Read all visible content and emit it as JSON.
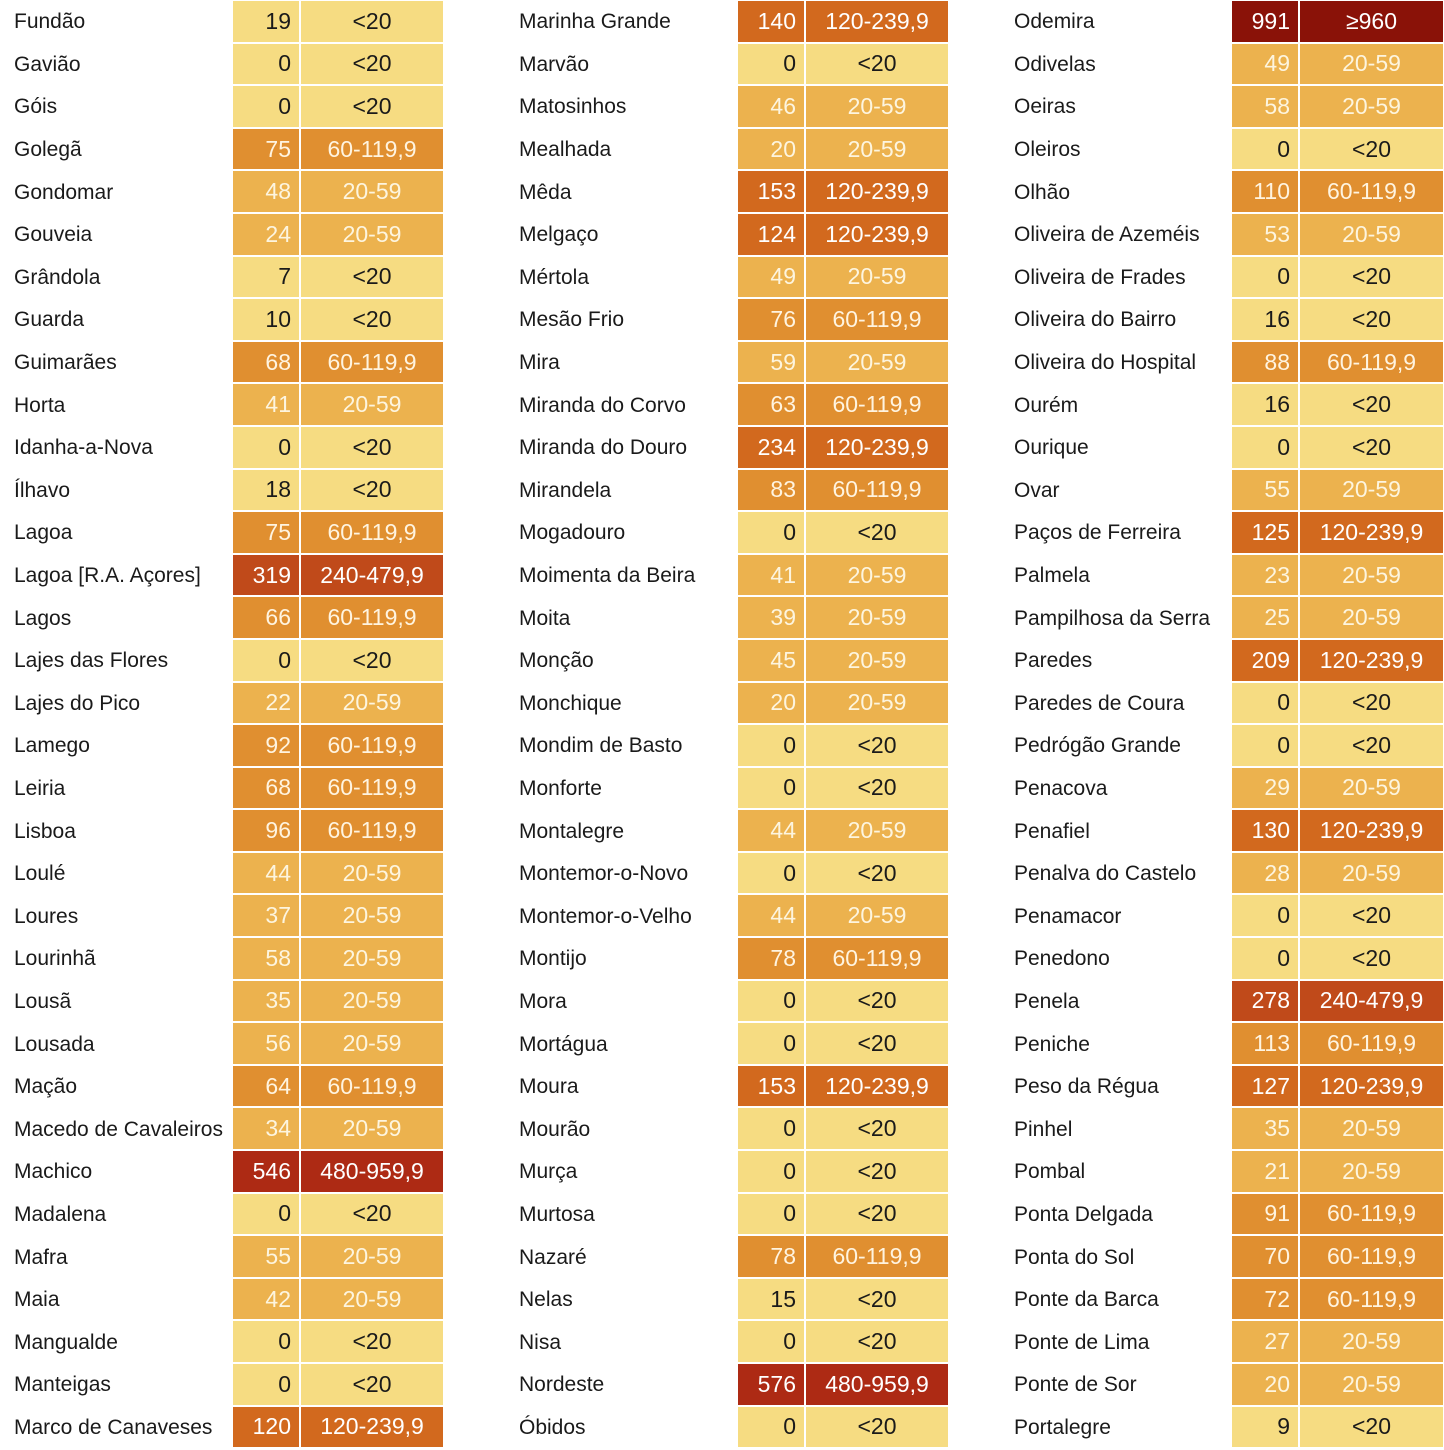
{
  "columns": [
    {
      "rows": [
        {
          "name": "Fundão",
          "value": "19",
          "range": "<20",
          "level": 0
        },
        {
          "name": "Gavião",
          "value": "0",
          "range": "<20",
          "level": 0
        },
        {
          "name": "Góis",
          "value": "0",
          "range": "<20",
          "level": 0
        },
        {
          "name": "Golegã",
          "value": "75",
          "range": "60-119,9",
          "level": 2
        },
        {
          "name": "Gondomar",
          "value": "48",
          "range": "20-59",
          "level": 1
        },
        {
          "name": "Gouveia",
          "value": "24",
          "range": "20-59",
          "level": 1
        },
        {
          "name": "Grândola",
          "value": "7",
          "range": "<20",
          "level": 0
        },
        {
          "name": "Guarda",
          "value": "10",
          "range": "<20",
          "level": 0
        },
        {
          "name": "Guimarães",
          "value": "68",
          "range": "60-119,9",
          "level": 2
        },
        {
          "name": "Horta",
          "value": "41",
          "range": "20-59",
          "level": 1
        },
        {
          "name": "Idanha-a-Nova",
          "value": "0",
          "range": "<20",
          "level": 0
        },
        {
          "name": "Ílhavo",
          "value": "18",
          "range": "<20",
          "level": 0
        },
        {
          "name": "Lagoa",
          "value": "75",
          "range": "60-119,9",
          "level": 2
        },
        {
          "name": "Lagoa [R.A. Açores]",
          "value": "319",
          "range": "240-479,9",
          "level": 4
        },
        {
          "name": "Lagos",
          "value": "66",
          "range": "60-119,9",
          "level": 2
        },
        {
          "name": "Lajes das Flores",
          "value": "0",
          "range": "<20",
          "level": 0
        },
        {
          "name": "Lajes do Pico",
          "value": "22",
          "range": "20-59",
          "level": 1
        },
        {
          "name": "Lamego",
          "value": "92",
          "range": "60-119,9",
          "level": 2
        },
        {
          "name": "Leiria",
          "value": "68",
          "range": "60-119,9",
          "level": 2
        },
        {
          "name": "Lisboa",
          "value": "96",
          "range": "60-119,9",
          "level": 2
        },
        {
          "name": "Loulé",
          "value": "44",
          "range": "20-59",
          "level": 1
        },
        {
          "name": "Loures",
          "value": "37",
          "range": "20-59",
          "level": 1
        },
        {
          "name": "Lourinhã",
          "value": "58",
          "range": "20-59",
          "level": 1
        },
        {
          "name": "Lousã",
          "value": "35",
          "range": "20-59",
          "level": 1
        },
        {
          "name": "Lousada",
          "value": "56",
          "range": "20-59",
          "level": 1
        },
        {
          "name": "Mação",
          "value": "64",
          "range": "60-119,9",
          "level": 2
        },
        {
          "name": "Macedo de Cavaleiros",
          "value": "34",
          "range": "20-59",
          "level": 1
        },
        {
          "name": "Machico",
          "value": "546",
          "range": "480-959,9",
          "level": 5
        },
        {
          "name": "Madalena",
          "value": "0",
          "range": "<20",
          "level": 0
        },
        {
          "name": "Mafra",
          "value": "55",
          "range": "20-59",
          "level": 1
        },
        {
          "name": "Maia",
          "value": "42",
          "range": "20-59",
          "level": 1
        },
        {
          "name": "Mangualde",
          "value": "0",
          "range": "<20",
          "level": 0
        },
        {
          "name": "Manteigas",
          "value": "0",
          "range": "<20",
          "level": 0
        },
        {
          "name": "Marco de Canaveses",
          "value": "120",
          "range": "120-239,9",
          "level": 3
        }
      ]
    },
    {
      "rows": [
        {
          "name": "Marinha Grande",
          "value": "140",
          "range": "120-239,9",
          "level": 3
        },
        {
          "name": "Marvão",
          "value": "0",
          "range": "<20",
          "level": 0
        },
        {
          "name": "Matosinhos",
          "value": "46",
          "range": "20-59",
          "level": 1
        },
        {
          "name": "Mealhada",
          "value": "20",
          "range": "20-59",
          "level": 1
        },
        {
          "name": "Mêda",
          "value": "153",
          "range": "120-239,9",
          "level": 3
        },
        {
          "name": "Melgaço",
          "value": "124",
          "range": "120-239,9",
          "level": 3
        },
        {
          "name": "Mértola",
          "value": "49",
          "range": "20-59",
          "level": 1
        },
        {
          "name": "Mesão Frio",
          "value": "76",
          "range": "60-119,9",
          "level": 2
        },
        {
          "name": "Mira",
          "value": "59",
          "range": "20-59",
          "level": 1
        },
        {
          "name": "Miranda do Corvo",
          "value": "63",
          "range": "60-119,9",
          "level": 2
        },
        {
          "name": "Miranda do Douro",
          "value": "234",
          "range": "120-239,9",
          "level": 3
        },
        {
          "name": "Mirandela",
          "value": "83",
          "range": "60-119,9",
          "level": 2
        },
        {
          "name": "Mogadouro",
          "value": "0",
          "range": "<20",
          "level": 0
        },
        {
          "name": "Moimenta da Beira",
          "value": "41",
          "range": "20-59",
          "level": 1
        },
        {
          "name": "Moita",
          "value": "39",
          "range": "20-59",
          "level": 1
        },
        {
          "name": "Monção",
          "value": "45",
          "range": "20-59",
          "level": 1
        },
        {
          "name": "Monchique",
          "value": "20",
          "range": "20-59",
          "level": 1
        },
        {
          "name": "Mondim de Basto",
          "value": "0",
          "range": "<20",
          "level": 0
        },
        {
          "name": "Monforte",
          "value": "0",
          "range": "<20",
          "level": 0
        },
        {
          "name": "Montalegre",
          "value": "44",
          "range": "20-59",
          "level": 1
        },
        {
          "name": "Montemor-o-Novo",
          "value": "0",
          "range": "<20",
          "level": 0
        },
        {
          "name": "Montemor-o-Velho",
          "value": "44",
          "range": "20-59",
          "level": 1
        },
        {
          "name": "Montijo",
          "value": "78",
          "range": "60-119,9",
          "level": 2
        },
        {
          "name": "Mora",
          "value": "0",
          "range": "<20",
          "level": 0
        },
        {
          "name": "Mortágua",
          "value": "0",
          "range": "<20",
          "level": 0
        },
        {
          "name": "Moura",
          "value": "153",
          "range": "120-239,9",
          "level": 3
        },
        {
          "name": "Mourão",
          "value": "0",
          "range": "<20",
          "level": 0
        },
        {
          "name": "Murça",
          "value": "0",
          "range": "<20",
          "level": 0
        },
        {
          "name": "Murtosa",
          "value": "0",
          "range": "<20",
          "level": 0
        },
        {
          "name": "Nazaré",
          "value": "78",
          "range": "60-119,9",
          "level": 2
        },
        {
          "name": "Nelas",
          "value": "15",
          "range": "<20",
          "level": 0
        },
        {
          "name": "Nisa",
          "value": "0",
          "range": "<20",
          "level": 0
        },
        {
          "name": "Nordeste",
          "value": "576",
          "range": "480-959,9",
          "level": 5
        },
        {
          "name": "Óbidos",
          "value": "0",
          "range": "<20",
          "level": 0
        }
      ]
    },
    {
      "rows": [
        {
          "name": "Odemira",
          "value": "991",
          "range": "≥960",
          "level": 6
        },
        {
          "name": "Odivelas",
          "value": "49",
          "range": "20-59",
          "level": 1
        },
        {
          "name": "Oeiras",
          "value": "58",
          "range": "20-59",
          "level": 1
        },
        {
          "name": "Oleiros",
          "value": "0",
          "range": "<20",
          "level": 0
        },
        {
          "name": "Olhão",
          "value": "110",
          "range": "60-119,9",
          "level": 2
        },
        {
          "name": "Oliveira de Azeméis",
          "value": "53",
          "range": "20-59",
          "level": 1
        },
        {
          "name": "Oliveira de Frades",
          "value": "0",
          "range": "<20",
          "level": 0
        },
        {
          "name": "Oliveira do Bairro",
          "value": "16",
          "range": "<20",
          "level": 0
        },
        {
          "name": "Oliveira do Hospital",
          "value": "88",
          "range": "60-119,9",
          "level": 2
        },
        {
          "name": "Ourém",
          "value": "16",
          "range": "<20",
          "level": 0
        },
        {
          "name": "Ourique",
          "value": "0",
          "range": "<20",
          "level": 0
        },
        {
          "name": "Ovar",
          "value": "55",
          "range": "20-59",
          "level": 1
        },
        {
          "name": "Paços de Ferreira",
          "value": "125",
          "range": "120-239,9",
          "level": 3
        },
        {
          "name": "Palmela",
          "value": "23",
          "range": "20-59",
          "level": 1
        },
        {
          "name": "Pampilhosa da Serra",
          "value": "25",
          "range": "20-59",
          "level": 1
        },
        {
          "name": "Paredes",
          "value": "209",
          "range": "120-239,9",
          "level": 3
        },
        {
          "name": "Paredes de Coura",
          "value": "0",
          "range": "<20",
          "level": 0
        },
        {
          "name": "Pedrógão Grande",
          "value": "0",
          "range": "<20",
          "level": 0
        },
        {
          "name": "Penacova",
          "value": "29",
          "range": "20-59",
          "level": 1
        },
        {
          "name": "Penafiel",
          "value": "130",
          "range": "120-239,9",
          "level": 3
        },
        {
          "name": "Penalva do Castelo",
          "value": "28",
          "range": "20-59",
          "level": 1
        },
        {
          "name": "Penamacor",
          "value": "0",
          "range": "<20",
          "level": 0
        },
        {
          "name": "Penedono",
          "value": "0",
          "range": "<20",
          "level": 0
        },
        {
          "name": "Penela",
          "value": "278",
          "range": "240-479,9",
          "level": 4
        },
        {
          "name": "Peniche",
          "value": "113",
          "range": "60-119,9",
          "level": 2
        },
        {
          "name": "Peso da Régua",
          "value": "127",
          "range": "120-239,9",
          "level": 3
        },
        {
          "name": "Pinhel",
          "value": "35",
          "range": "20-59",
          "level": 1
        },
        {
          "name": "Pombal",
          "value": "21",
          "range": "20-59",
          "level": 1
        },
        {
          "name": "Ponta Delgada",
          "value": "91",
          "range": "60-119,9",
          "level": 2
        },
        {
          "name": "Ponta do Sol",
          "value": "70",
          "range": "60-119,9",
          "level": 2
        },
        {
          "name": "Ponte da Barca",
          "value": "72",
          "range": "60-119,9",
          "level": 2
        },
        {
          "name": "Ponte de Lima",
          "value": "27",
          "range": "20-59",
          "level": 1
        },
        {
          "name": "Ponte de Sor",
          "value": "20",
          "range": "20-59",
          "level": 1
        },
        {
          "name": "Portalegre",
          "value": "9",
          "range": "<20",
          "level": 0
        }
      ]
    }
  ],
  "colors": {
    "level_0": "#f6dc82",
    "level_1": "#ecb24e",
    "level_2": "#e08f30",
    "level_3": "#d2691e",
    "level_4": "#c04a1a",
    "level_5": "#ad2a14",
    "level_6": "#8a1208"
  }
}
